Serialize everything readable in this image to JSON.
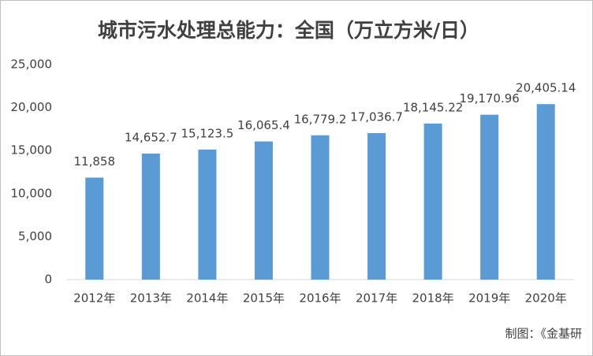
{
  "chart_data": {
    "type": "bar",
    "title": "城市污水处理总能力：全国（万立方米/日）",
    "categories": [
      "2012年",
      "2013年",
      "2014年",
      "2015年",
      "2016年",
      "2017年",
      "2018年",
      "2019年",
      "2020年"
    ],
    "values": [
      11858,
      14652.7,
      15123.5,
      16065.4,
      16779.2,
      17036.7,
      18145.22,
      19170.96,
      20405.14
    ],
    "value_labels": [
      "11,858",
      "14,652.7",
      "15,123.5",
      "16,065.4",
      "16,779.2",
      "17,036.7",
      "18,145.22",
      "19,170.96",
      "20,405.14"
    ],
    "color": "#5b9bd5",
    "ylim": [
      0,
      25000
    ],
    "yticks": [
      0,
      {
        "value": 5000,
        "label": "5,000"
      },
      {
        "value": 10000,
        "label": "10,000"
      },
      {
        "value": 15000,
        "label": "15,000"
      },
      {
        "value": 20000,
        "label": "20,000"
      },
      {
        "value": 25000,
        "label": "25,000"
      }
    ],
    "grid": false,
    "source": "制图：《金基研"
  }
}
